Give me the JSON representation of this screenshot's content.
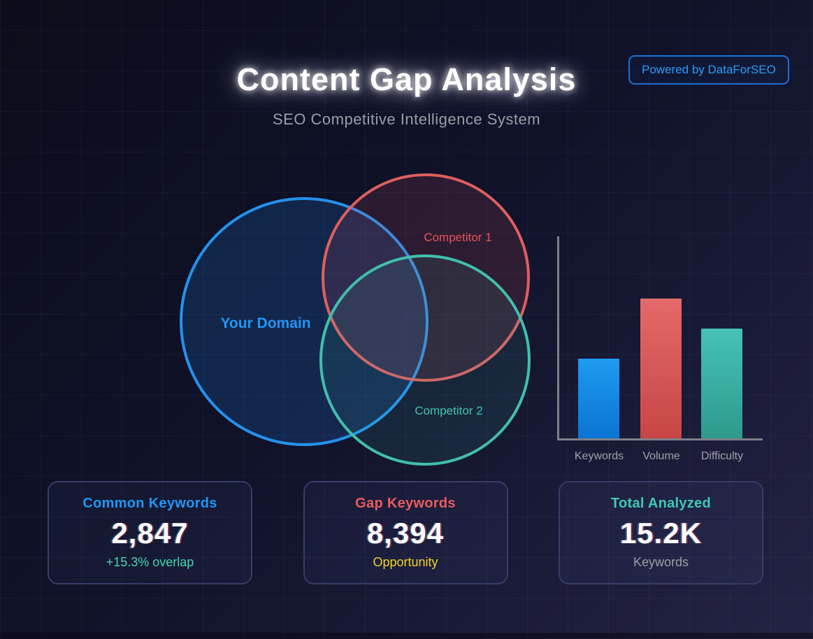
{
  "header": {
    "title": "Content Gap Analysis",
    "subtitle": "SEO Competitive Intelligence System",
    "badge_label": "Powered by DataForSEO"
  },
  "venn": {
    "circles": [
      {
        "label": "Your Domain",
        "stroke": "#2492ec",
        "fill": "rgba(30,115,205,0.22)",
        "label_color": "#2196f3"
      },
      {
        "label": "Competitor 1",
        "stroke": "#dd5f5f",
        "fill": "rgba(225,85,100,0.14)",
        "label_color": "#e25757"
      },
      {
        "label": "Competitor 2",
        "stroke": "#41bfac",
        "fill": "rgba(64,200,180,0.10)",
        "label_color": "#41c4ae"
      }
    ]
  },
  "chart_data": {
    "type": "bar",
    "categories": [
      "Keywords",
      "Volume",
      "Difficulty"
    ],
    "values": [
      40,
      70,
      55
    ],
    "ylim": [
      0,
      100
    ],
    "grid": false,
    "legend": false,
    "axis_color": "#7d8088",
    "label_color": "#9fa2aa",
    "bar_colors": [
      {
        "top": "#1e9bf0",
        "bottom": "#0b74d4"
      },
      {
        "top": "#e36a6a",
        "bottom": "#c74545"
      },
      {
        "top": "#45c2b6",
        "bottom": "#2f9a8e"
      }
    ]
  },
  "stats": {
    "cards": [
      {
        "title": "Common Keywords",
        "value": "2,847",
        "sub": "+15.3% overlap",
        "title_color": "#2196f3",
        "sub_color": "#45d6b4"
      },
      {
        "title": "Gap Keywords",
        "value": "8,394",
        "sub": "Opportunity",
        "title_color": "#e85c5c",
        "sub_color": "#f0d428"
      },
      {
        "title": "Total Analyzed",
        "value": "15.2K",
        "sub": "Keywords",
        "title_color": "#41c9b4",
        "sub_color": "#9aa0a8"
      }
    ]
  }
}
